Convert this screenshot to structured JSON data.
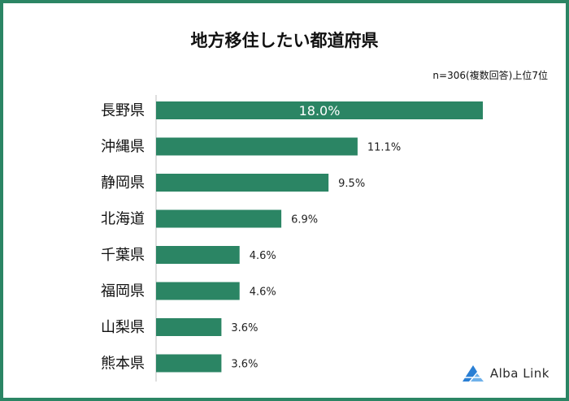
{
  "colors": {
    "bar": "#2b8564",
    "frame": "#2b8564",
    "axis": "#bfbfbf",
    "logo": "#2a7fd4"
  },
  "chart_data": {
    "type": "bar",
    "orientation": "horizontal",
    "title": "地方移住したい都道府県",
    "note": "n=306(複数回答)上位7位",
    "categories": [
      "長野県",
      "沖縄県",
      "静岡県",
      "北海道",
      "千葉県",
      "福岡県",
      "山梨県",
      "熊本県"
    ],
    "values": [
      18.0,
      11.1,
      9.5,
      6.9,
      4.6,
      4.6,
      3.6,
      3.6
    ],
    "value_labels": [
      "18.0%",
      "11.1%",
      "9.5%",
      "6.9%",
      "4.6%",
      "4.6%",
      "3.6%",
      "3.6%"
    ],
    "xlim": [
      0,
      18
    ],
    "xlabel": "",
    "ylabel": "",
    "grid": false
  },
  "brand": {
    "name": "Alba Link",
    "icon": "alba-link-logo-icon"
  }
}
